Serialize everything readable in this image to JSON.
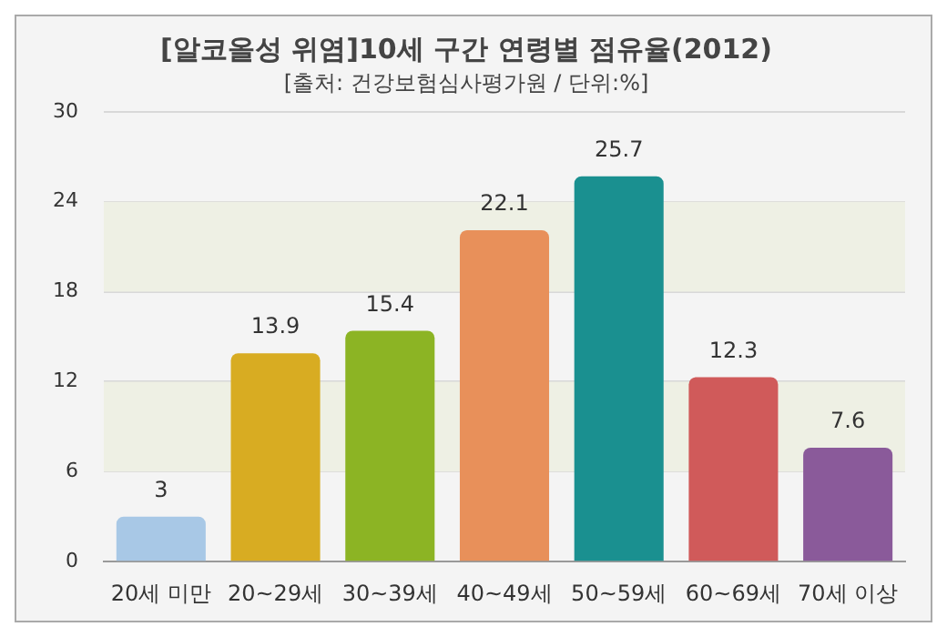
{
  "chart_data": {
    "type": "bar",
    "title": "[알코올성 위염]10세 구간 연령별 점유율(2012)",
    "subtitle": "[출처: 건강보험심사평가원 / 단위:%]",
    "categories": [
      "20세 미만",
      "20~29세",
      "30~39세",
      "40~49세",
      "50~59세",
      "60~69세",
      "70세 이상"
    ],
    "values": [
      3,
      13.9,
      15.4,
      22.1,
      25.7,
      12.3,
      7.6
    ],
    "colors": [
      "#a8c8e6",
      "#d8ac22",
      "#8cb424",
      "#e8905a",
      "#1a9090",
      "#d05a5a",
      "#8a5a9a"
    ],
    "ylim": [
      0,
      30
    ],
    "yticks": [
      0,
      6,
      12,
      18,
      24,
      30
    ],
    "grid": "y",
    "data_labels": true,
    "bands": [
      {
        "axis": "y",
        "from": 6,
        "to": 12,
        "color": "#eef0e4"
      },
      {
        "axis": "y",
        "from": 18,
        "to": 24,
        "color": "#eef0e4"
      }
    ]
  }
}
